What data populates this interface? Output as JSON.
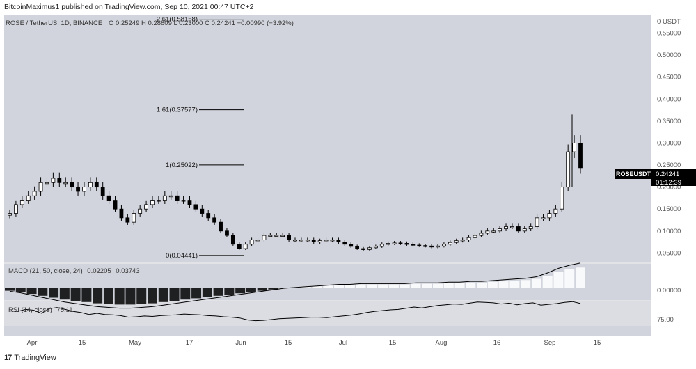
{
  "header": {
    "published": "BitcoinMaximus1 published on TradingView.com, Sep 10, 2021 00:47 UTC+2"
  },
  "legend": {
    "symbol": "ROSE / TetherUS, 1D, BINANCE",
    "o_label": "O",
    "o": "0.25249",
    "h_label": "H",
    "h": "0.28809",
    "l_label": "L",
    "l": "0.23000",
    "c_label": "C",
    "c": "0.24241",
    "change": "−0.00990 (−3.92%)"
  },
  "price_axis": {
    "currency": "USDT",
    "ticks": [
      "0.55000",
      "0.50000",
      "0.45000",
      "0.40000",
      "0.35000",
      "0.30000",
      "0.25000",
      "0.20000",
      "0.15000",
      "0.10000",
      "0.05000"
    ],
    "last_label": "ROSEUSDT",
    "last_price": "0.24241",
    "countdown": "01:12:39"
  },
  "fib_levels": [
    {
      "label": "2.61(0.58158)",
      "value": 0.58158
    },
    {
      "label": "1.61(0.37577)",
      "value": 0.37577
    },
    {
      "label": "1(0.25022)",
      "value": 0.25022
    },
    {
      "label": "0(0.04441)",
      "value": 0.04441
    }
  ],
  "macd": {
    "label": "MACD (21, 50, close, 24)",
    "value1": "0.02205",
    "value2": "0.03743",
    "axis_label": "0.00000"
  },
  "rsi": {
    "label": "RSI (14, close)",
    "value": "75.11",
    "axis_label": "75.00"
  },
  "x_axis": {
    "labels": [
      "Apr",
      "15",
      "May",
      "17",
      "Jun",
      "15",
      "Jul",
      "15",
      "Aug",
      "16",
      "Sep",
      "15"
    ]
  },
  "footer": {
    "logo": "17",
    "brand": "TradingView"
  },
  "colors": {
    "pane_bg": "#d1d4dc",
    "up_candle": "#ffffff",
    "down_candle": "#000000",
    "line": "#000000"
  },
  "chart_data": {
    "type": "candlestick",
    "y_range": [
      0.03,
      0.6
    ],
    "price_series_approx": [
      0.14,
      0.16,
      0.17,
      0.18,
      0.19,
      0.21,
      0.21,
      0.22,
      0.21,
      0.21,
      0.2,
      0.19,
      0.2,
      0.21,
      0.2,
      0.18,
      0.17,
      0.15,
      0.13,
      0.12,
      0.14,
      0.15,
      0.16,
      0.17,
      0.17,
      0.18,
      0.18,
      0.17,
      0.17,
      0.16,
      0.15,
      0.14,
      0.13,
      0.12,
      0.1,
      0.09,
      0.07,
      0.06,
      0.07,
      0.08,
      0.08,
      0.09,
      0.09,
      0.09,
      0.09,
      0.08,
      0.08,
      0.08,
      0.08,
      0.075,
      0.078,
      0.08,
      0.08,
      0.075,
      0.07,
      0.065,
      0.06,
      0.058,
      0.062,
      0.065,
      0.07,
      0.072,
      0.073,
      0.072,
      0.07,
      0.068,
      0.067,
      0.066,
      0.064,
      0.066,
      0.07,
      0.074,
      0.078,
      0.08,
      0.085,
      0.09,
      0.095,
      0.1,
      0.1,
      0.105,
      0.11,
      0.11,
      0.1,
      0.105,
      0.11,
      0.13,
      0.13,
      0.14,
      0.15,
      0.2,
      0.28,
      0.3,
      0.24241
    ],
    "rsi_approx": [
      56,
      55,
      60,
      58,
      50,
      62,
      65,
      60,
      55,
      52,
      47,
      50,
      47,
      46,
      44,
      40,
      41,
      43,
      42,
      44,
      45,
      46,
      48,
      47,
      46,
      44,
      43,
      41,
      40,
      38,
      33,
      31,
      32,
      34,
      36,
      37,
      38,
      39,
      40,
      40,
      39,
      41,
      43,
      45,
      48,
      52,
      55,
      57,
      59,
      60,
      63,
      66,
      64,
      67,
      70,
      72,
      74,
      73,
      76,
      79,
      78,
      77,
      74,
      76,
      72,
      75,
      77,
      71,
      73,
      75,
      78,
      80,
      75.11
    ],
    "macd_hist_approx": [
      -0.004,
      -0.006,
      -0.009,
      -0.012,
      -0.015,
      -0.018,
      -0.02,
      -0.022,
      -0.024,
      -0.025,
      -0.026,
      -0.026,
      -0.025,
      -0.024,
      -0.022,
      -0.02,
      -0.018,
      -0.016,
      -0.014,
      -0.012,
      -0.01,
      -0.008,
      -0.006,
      -0.004,
      -0.002,
      0.0,
      0.001,
      0.002,
      0.003,
      0.004,
      0.005,
      0.005,
      0.006,
      0.006,
      0.006,
      0.006,
      0.006,
      0.007,
      0.007,
      0.007,
      0.008,
      0.008,
      0.009,
      0.009,
      0.01,
      0.011,
      0.012,
      0.013,
      0.015,
      0.02,
      0.026,
      0.03,
      0.033
    ],
    "xlabel": "",
    "ylabel": ""
  }
}
